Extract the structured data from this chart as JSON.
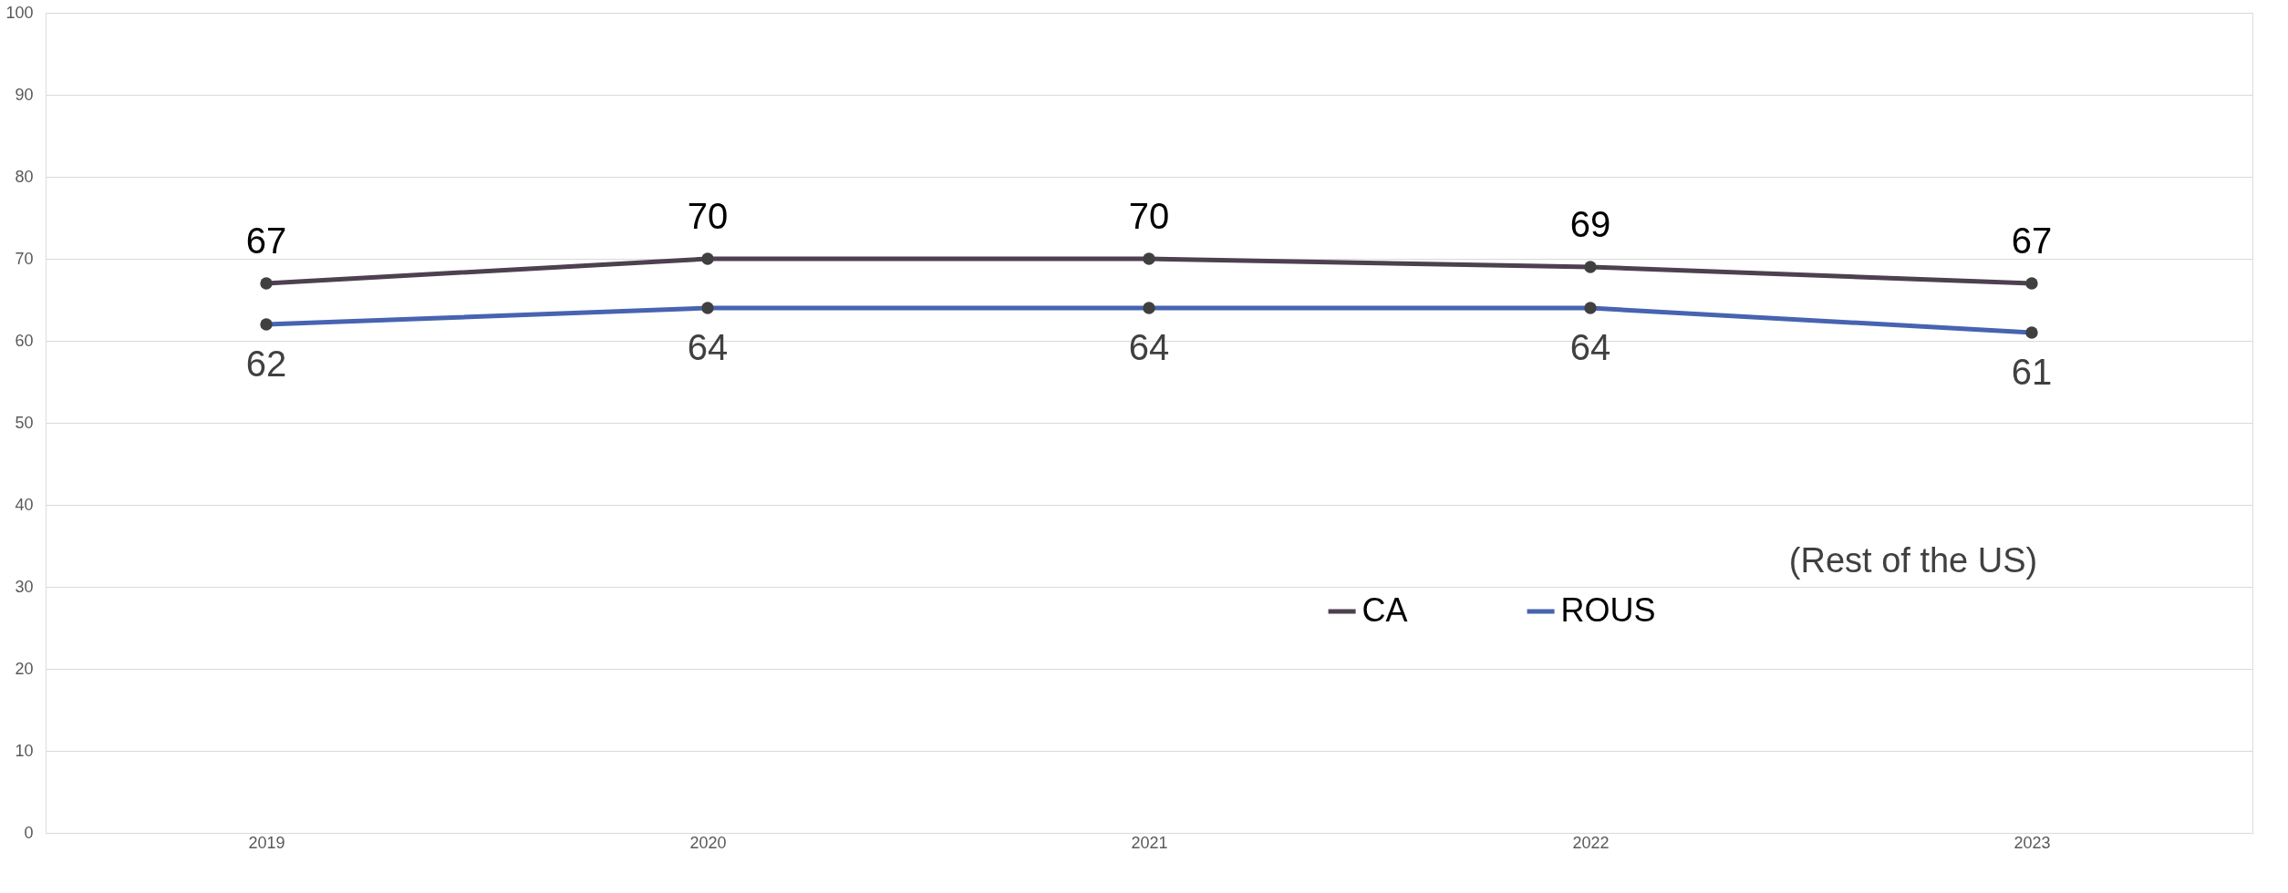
{
  "chart_data": {
    "type": "line",
    "categories": [
      "2019",
      "2020",
      "2021",
      "2022",
      "2023"
    ],
    "series": [
      {
        "name": "CA",
        "color": "#4d404f",
        "values": [
          67,
          70,
          70,
          69,
          67
        ]
      },
      {
        "name": "ROUS",
        "color": "#4763b1",
        "values": [
          62,
          64,
          64,
          64,
          61
        ]
      }
    ],
    "ylim": [
      0,
      100
    ],
    "yticks": [
      0,
      10,
      20,
      30,
      40,
      50,
      60,
      70,
      80,
      90,
      100
    ],
    "grid": "y",
    "legend": "bottom right",
    "marker": "circle",
    "line_style": "solid",
    "data_labels": true,
    "annotations": [
      "(Rest of the US)"
    ]
  }
}
